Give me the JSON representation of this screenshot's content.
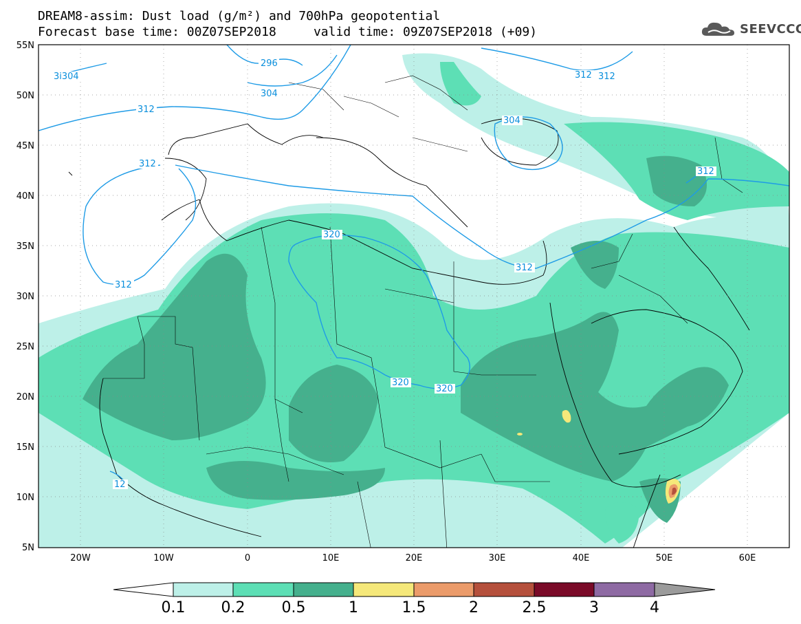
{
  "header": {
    "line1": "DREAM8-assim: Dust load (g/m²) and 700hPa geopotential",
    "line2": "Forecast base time: 00Z07SEP2018     valid time: 09Z07SEP2018 (+09)",
    "logo_text": "SEEVCCC",
    "logo_icon": "cloud-icon"
  },
  "map": {
    "lon_range": [
      -25,
      65
    ],
    "lat_range": [
      5,
      55
    ],
    "lat_labels": [
      "55N",
      "50N",
      "45N",
      "40N",
      "35N",
      "30N",
      "25N",
      "20N",
      "15N",
      "10N",
      "5N"
    ],
    "lon_labels": [
      "20W",
      "10W",
      "0",
      "10E",
      "20E",
      "30E",
      "40E",
      "50E",
      "60E"
    ]
  },
  "contours": {
    "labels": [
      "296",
      "304",
      "3i304",
      "312",
      "312",
      "312",
      "312",
      "312",
      "312",
      "304",
      "312",
      "320",
      "320",
      "320",
      "312",
      "12"
    ],
    "color": "#1e9be6"
  },
  "legend": {
    "thresholds": [
      "0.1",
      "0.2",
      "0.5",
      "1",
      "1.5",
      "2",
      "2.5",
      "3",
      "4"
    ],
    "colors": [
      "#bdf0e8",
      "#5ddfb5",
      "#45b08d",
      "#f5e87a",
      "#eb9b6a",
      "#b5503c",
      "#7a0a28",
      "#8e6aa3",
      "#9b9b9b"
    ]
  }
}
